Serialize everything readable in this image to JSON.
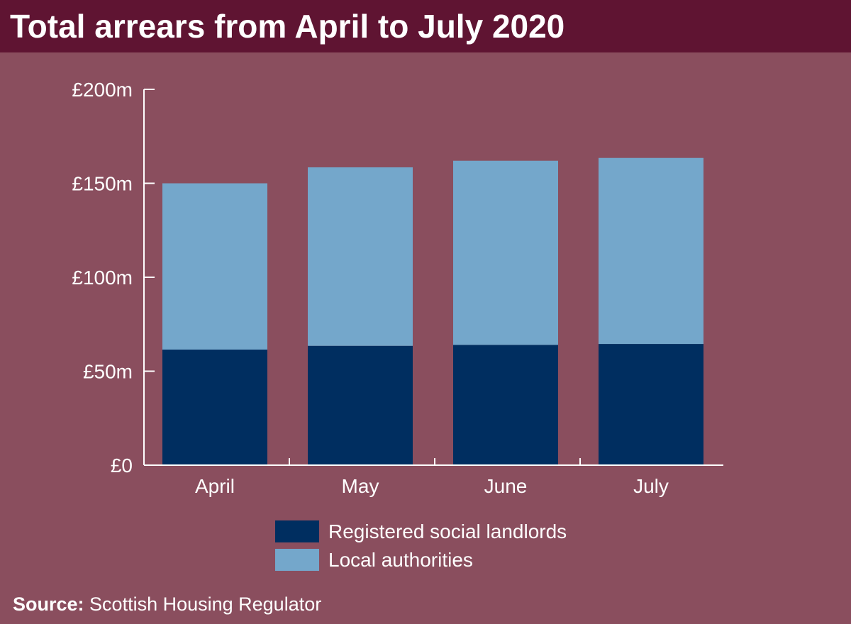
{
  "header": {
    "title": "Total arrears from April to July 2020"
  },
  "footer": {
    "source_label": "Source:",
    "source_text": "Scottish Housing Regulator"
  },
  "colors": {
    "background": "#8a4e5e",
    "title_bar": "#5f1432",
    "registered_social_landlords": "#002e60",
    "local_authorities": "#74a7cb",
    "axis": "#ffffff"
  },
  "chart_data": {
    "type": "bar",
    "stacked": true,
    "categories": [
      "April",
      "May",
      "June",
      "July"
    ],
    "series": [
      {
        "name": "Registered social landlords",
        "values": [
          61.5,
          63.5,
          64,
          64.5
        ],
        "color": "#002e60"
      },
      {
        "name": "Local authorities",
        "values": [
          88.5,
          95,
          98,
          99
        ],
        "color": "#74a7cb"
      }
    ],
    "title": "Total arrears from April to July 2020",
    "ylim": [
      0,
      200
    ],
    "yticks": [
      0,
      50,
      100,
      150,
      200
    ],
    "ytick_labels": [
      "£0",
      "£50m",
      "£100m",
      "£150m",
      "£200m"
    ],
    "grid": false,
    "legend_position": "bottom-center"
  }
}
